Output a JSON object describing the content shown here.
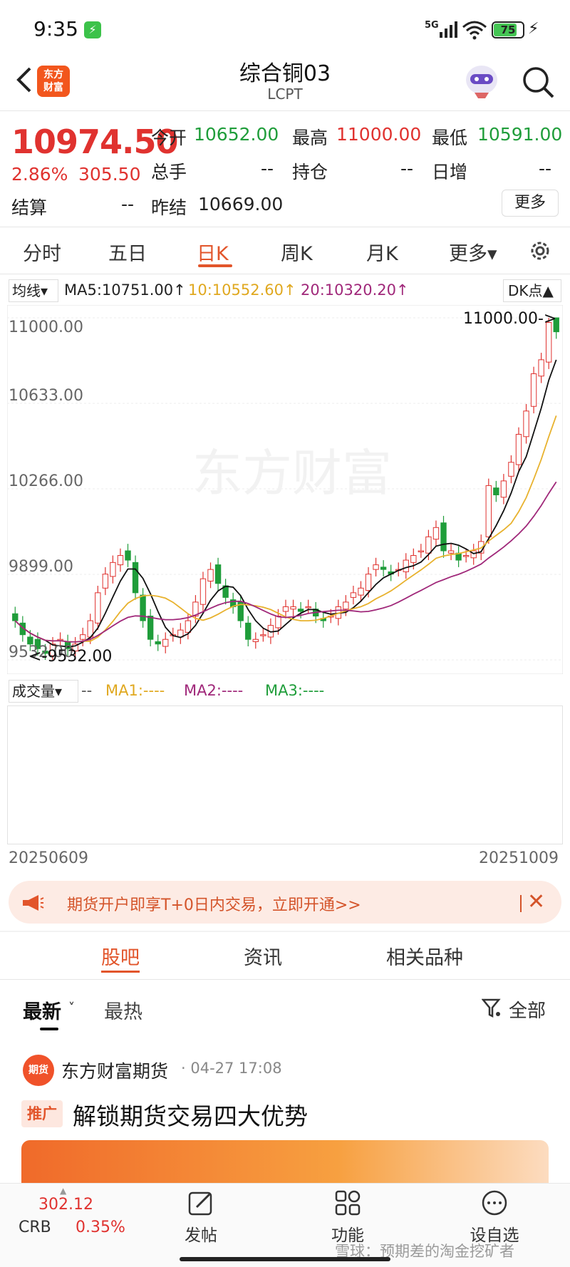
{
  "status_bar": {
    "time": "9:35",
    "network": "5G",
    "battery": "75"
  },
  "header": {
    "logo_text": "东方\n财富",
    "title": "综合铜03",
    "subtitle": "LCPT"
  },
  "quote": {
    "price": "10974.50",
    "change_pct": "2.86%",
    "change": "305.50",
    "settle_label": "结算",
    "settle_value": "--",
    "open_label": "今开",
    "open_value": "10652.00",
    "high_label": "最高",
    "high_value": "11000.00",
    "low_label": "最低",
    "low_value": "10591.00",
    "volume_label": "总手",
    "volume_value": "--",
    "position_label": "持仓",
    "position_value": "--",
    "daily_inc_label": "日增",
    "daily_inc_value": "--",
    "prev_settle_label": "昨结",
    "prev_settle_value": "10669.00",
    "more_label": "更多"
  },
  "tabs": [
    "分时",
    "五日",
    "日K",
    "周K",
    "月K",
    "更多▾"
  ],
  "active_tab": "日K",
  "indicators": {
    "selector": "均线▾",
    "ma5": "MA5:10751.00↑",
    "ma10": "10:10552.60↑",
    "ma20": "20:10320.20↑",
    "dk": "DK点▲",
    "ma5_color": "#111111",
    "ma10_color": "#e8b22e",
    "ma20_color": "#a0287a"
  },
  "chart_data": {
    "type": "candlestick",
    "y_ticks": [
      "11000.00",
      "10633.00",
      "10266.00",
      "9899.00",
      "9532.00"
    ],
    "ylim": [
      9532,
      11000
    ],
    "annotations": {
      "max": "11000.00->",
      "min": "<-9532.00"
    },
    "x_start": "20250609",
    "x_end": "20251009",
    "watermark": "东方财富",
    "closes": [
      9700,
      9640,
      9600,
      9580,
      9560,
      9600,
      9620,
      9580,
      9600,
      9640,
      9700,
      9820,
      9900,
      9950,
      9980,
      9960,
      9820,
      9700,
      9620,
      9600,
      9620,
      9640,
      9660,
      9700,
      9780,
      9880,
      9920,
      9860,
      9800,
      9760,
      9700,
      9620,
      9620,
      9640,
      9680,
      9720,
      9760,
      9760,
      9740,
      9760,
      9720,
      9700,
      9720,
      9760,
      9780,
      9820,
      9840,
      9900,
      9940,
      9920,
      9900,
      9920,
      9960,
      9980,
      10000,
      10060,
      10100,
      10000,
      10000,
      9960,
      9980,
      10000,
      10040,
      10280,
      10240,
      10300,
      10380,
      10500,
      10600,
      10760,
      10820,
      10980,
      10940
    ],
    "volume_labels": {
      "selector": "成交量▾",
      "dash": "--",
      "ma1": "MA1:----",
      "ma2": "MA2:----",
      "ma3": "MA3:----"
    }
  },
  "promo": {
    "text": "期货开户即享T+0日内交易，立即开通>>",
    "close": "✕"
  },
  "section_tabs": [
    "股吧",
    "资讯",
    "相关品种"
  ],
  "sort_tabs": [
    "最新",
    "最热"
  ],
  "filter_label": "全部",
  "post": {
    "avatar_text": "期货",
    "author": "东方财富期货",
    "time": "· 04-27 17:08",
    "badge": "推广",
    "title": "解锁期货交易四大优势"
  },
  "bottom_bar": {
    "crb_value": "302.12",
    "crb_name": "CRB",
    "crb_pct": "0.35%",
    "nav": [
      "发帖",
      "功能",
      "设自选"
    ]
  },
  "watermark_text": "雪球：预期差的淘金挖矿者"
}
